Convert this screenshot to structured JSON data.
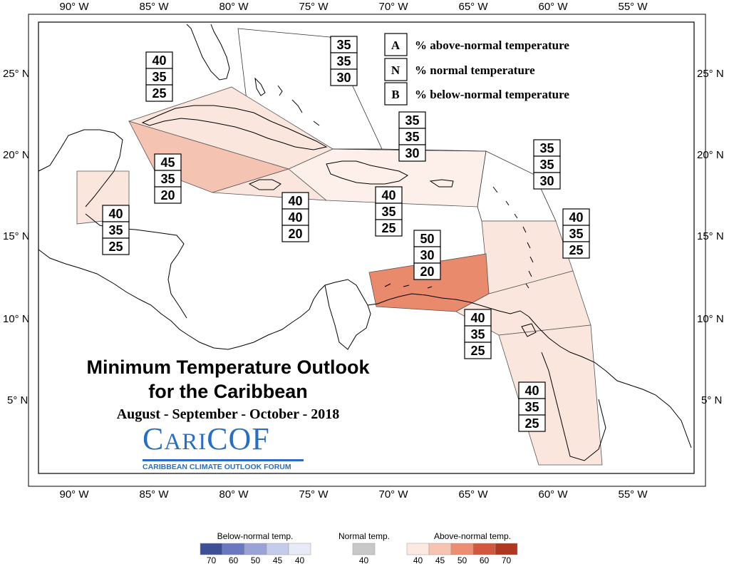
{
  "map": {
    "title_line1": "Minimum Temperature Outlook",
    "title_line2": "for the Caribbean",
    "subtitle": "August - September - October - 2018",
    "logo": {
      "word_c": "C",
      "word_ari": "ARI",
      "word_cof": "COF",
      "tagline": "CARIBBEAN CLIMATE OUTLOOK FORUM"
    },
    "x_ticks": [
      "90° W",
      "85° W",
      "80° W",
      "75° W",
      "70° W",
      "65° W",
      "60° W",
      "55° W"
    ],
    "y_ticks": [
      "25° N",
      "20° N",
      "15° N",
      "10° N",
      "5° N"
    ]
  },
  "key": [
    {
      "letter": "A",
      "text": "% above-normal temperature"
    },
    {
      "letter": "N",
      "text": "% normal temperature"
    },
    {
      "letter": "B",
      "text": "% below-normal temperature"
    }
  ],
  "regions": [
    {
      "id": "bahamas",
      "values": [
        "35",
        "35",
        "30"
      ],
      "category": "above",
      "level": 35
    },
    {
      "id": "cuba",
      "values": [
        "40",
        "35",
        "25"
      ],
      "category": "above",
      "level": 40
    },
    {
      "id": "cayman-west",
      "values": [
        "45",
        "35",
        "20"
      ],
      "category": "above",
      "level": 45
    },
    {
      "id": "belize",
      "values": [
        "40",
        "35",
        "25"
      ],
      "category": "above",
      "level": 40
    },
    {
      "id": "jamaica",
      "values": [
        "40",
        "40",
        "20"
      ],
      "category": "above",
      "level": 40
    },
    {
      "id": "hispaniola-pr",
      "values": [
        "40",
        "35",
        "25"
      ],
      "category": "above",
      "level": 40
    },
    {
      "id": "turks-caicos",
      "values": [
        "35",
        "35",
        "30"
      ],
      "category": "above",
      "level": 35
    },
    {
      "id": "leewards-north",
      "values": [
        "35",
        "35",
        "30"
      ],
      "category": "above",
      "level": 35
    },
    {
      "id": "windwards",
      "values": [
        "40",
        "35",
        "25"
      ],
      "category": "above",
      "level": 40
    },
    {
      "id": "abc-islands",
      "values": [
        "50",
        "30",
        "20"
      ],
      "category": "above",
      "level": 50
    },
    {
      "id": "trinidad",
      "values": [
        "40",
        "35",
        "25"
      ],
      "category": "above",
      "level": 40
    },
    {
      "id": "guianas",
      "values": [
        "40",
        "35",
        "25"
      ],
      "category": "above",
      "level": 40
    }
  ],
  "legend": {
    "below": {
      "title": "Below-normal temp.",
      "values": [
        "70",
        "60",
        "50",
        "45",
        "40"
      ],
      "colors": [
        "#3d4f96",
        "#6a78c0",
        "#9aa3d6",
        "#c5cbea",
        "#e7eaf7"
      ]
    },
    "normal": {
      "title": "Normal temp.",
      "values": [
        "40"
      ],
      "colors": [
        "#c8c8c8"
      ]
    },
    "above": {
      "title": "Above-normal temp.",
      "values": [
        "40",
        "45",
        "50",
        "60",
        "70"
      ],
      "colors": [
        "#fce9e2",
        "#f7c4b1",
        "#ec8e72",
        "#d2583d",
        "#b0371f"
      ]
    }
  },
  "colors": {
    "above_35": "#fdf0ea",
    "above_40": "#fbe6dd",
    "above_45": "#f5c3b2",
    "above_50": "#e98a6d"
  }
}
